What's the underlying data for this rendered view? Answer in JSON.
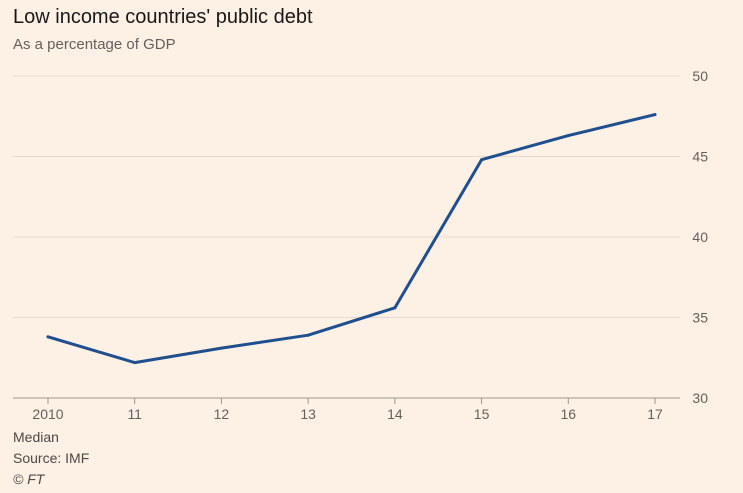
{
  "chart_data": {
    "type": "line",
    "title": "Low income countries' public debt",
    "subtitle": "As a percentage of GDP",
    "x": [
      "2010",
      "11",
      "12",
      "13",
      "14",
      "15",
      "16",
      "17"
    ],
    "series": [
      {
        "values": [
          33.8,
          32.2,
          33.1,
          33.9,
          35.6,
          44.8,
          46.3,
          47.6
        ],
        "color": "#1f4f8f"
      }
    ],
    "ylim": [
      30,
      50
    ],
    "yticks": [
      30,
      35,
      40,
      45,
      50
    ],
    "ytick_labels": [
      "30",
      "35",
      "40",
      "45",
      "50"
    ],
    "y_axis_side": "right",
    "grid": true,
    "note": "Median",
    "source": "Source: IMF",
    "credit": "© FT"
  },
  "colors": {
    "background": "#fdf1e6",
    "gridline": "#e6d9ce",
    "line": "#1f4f8f"
  }
}
